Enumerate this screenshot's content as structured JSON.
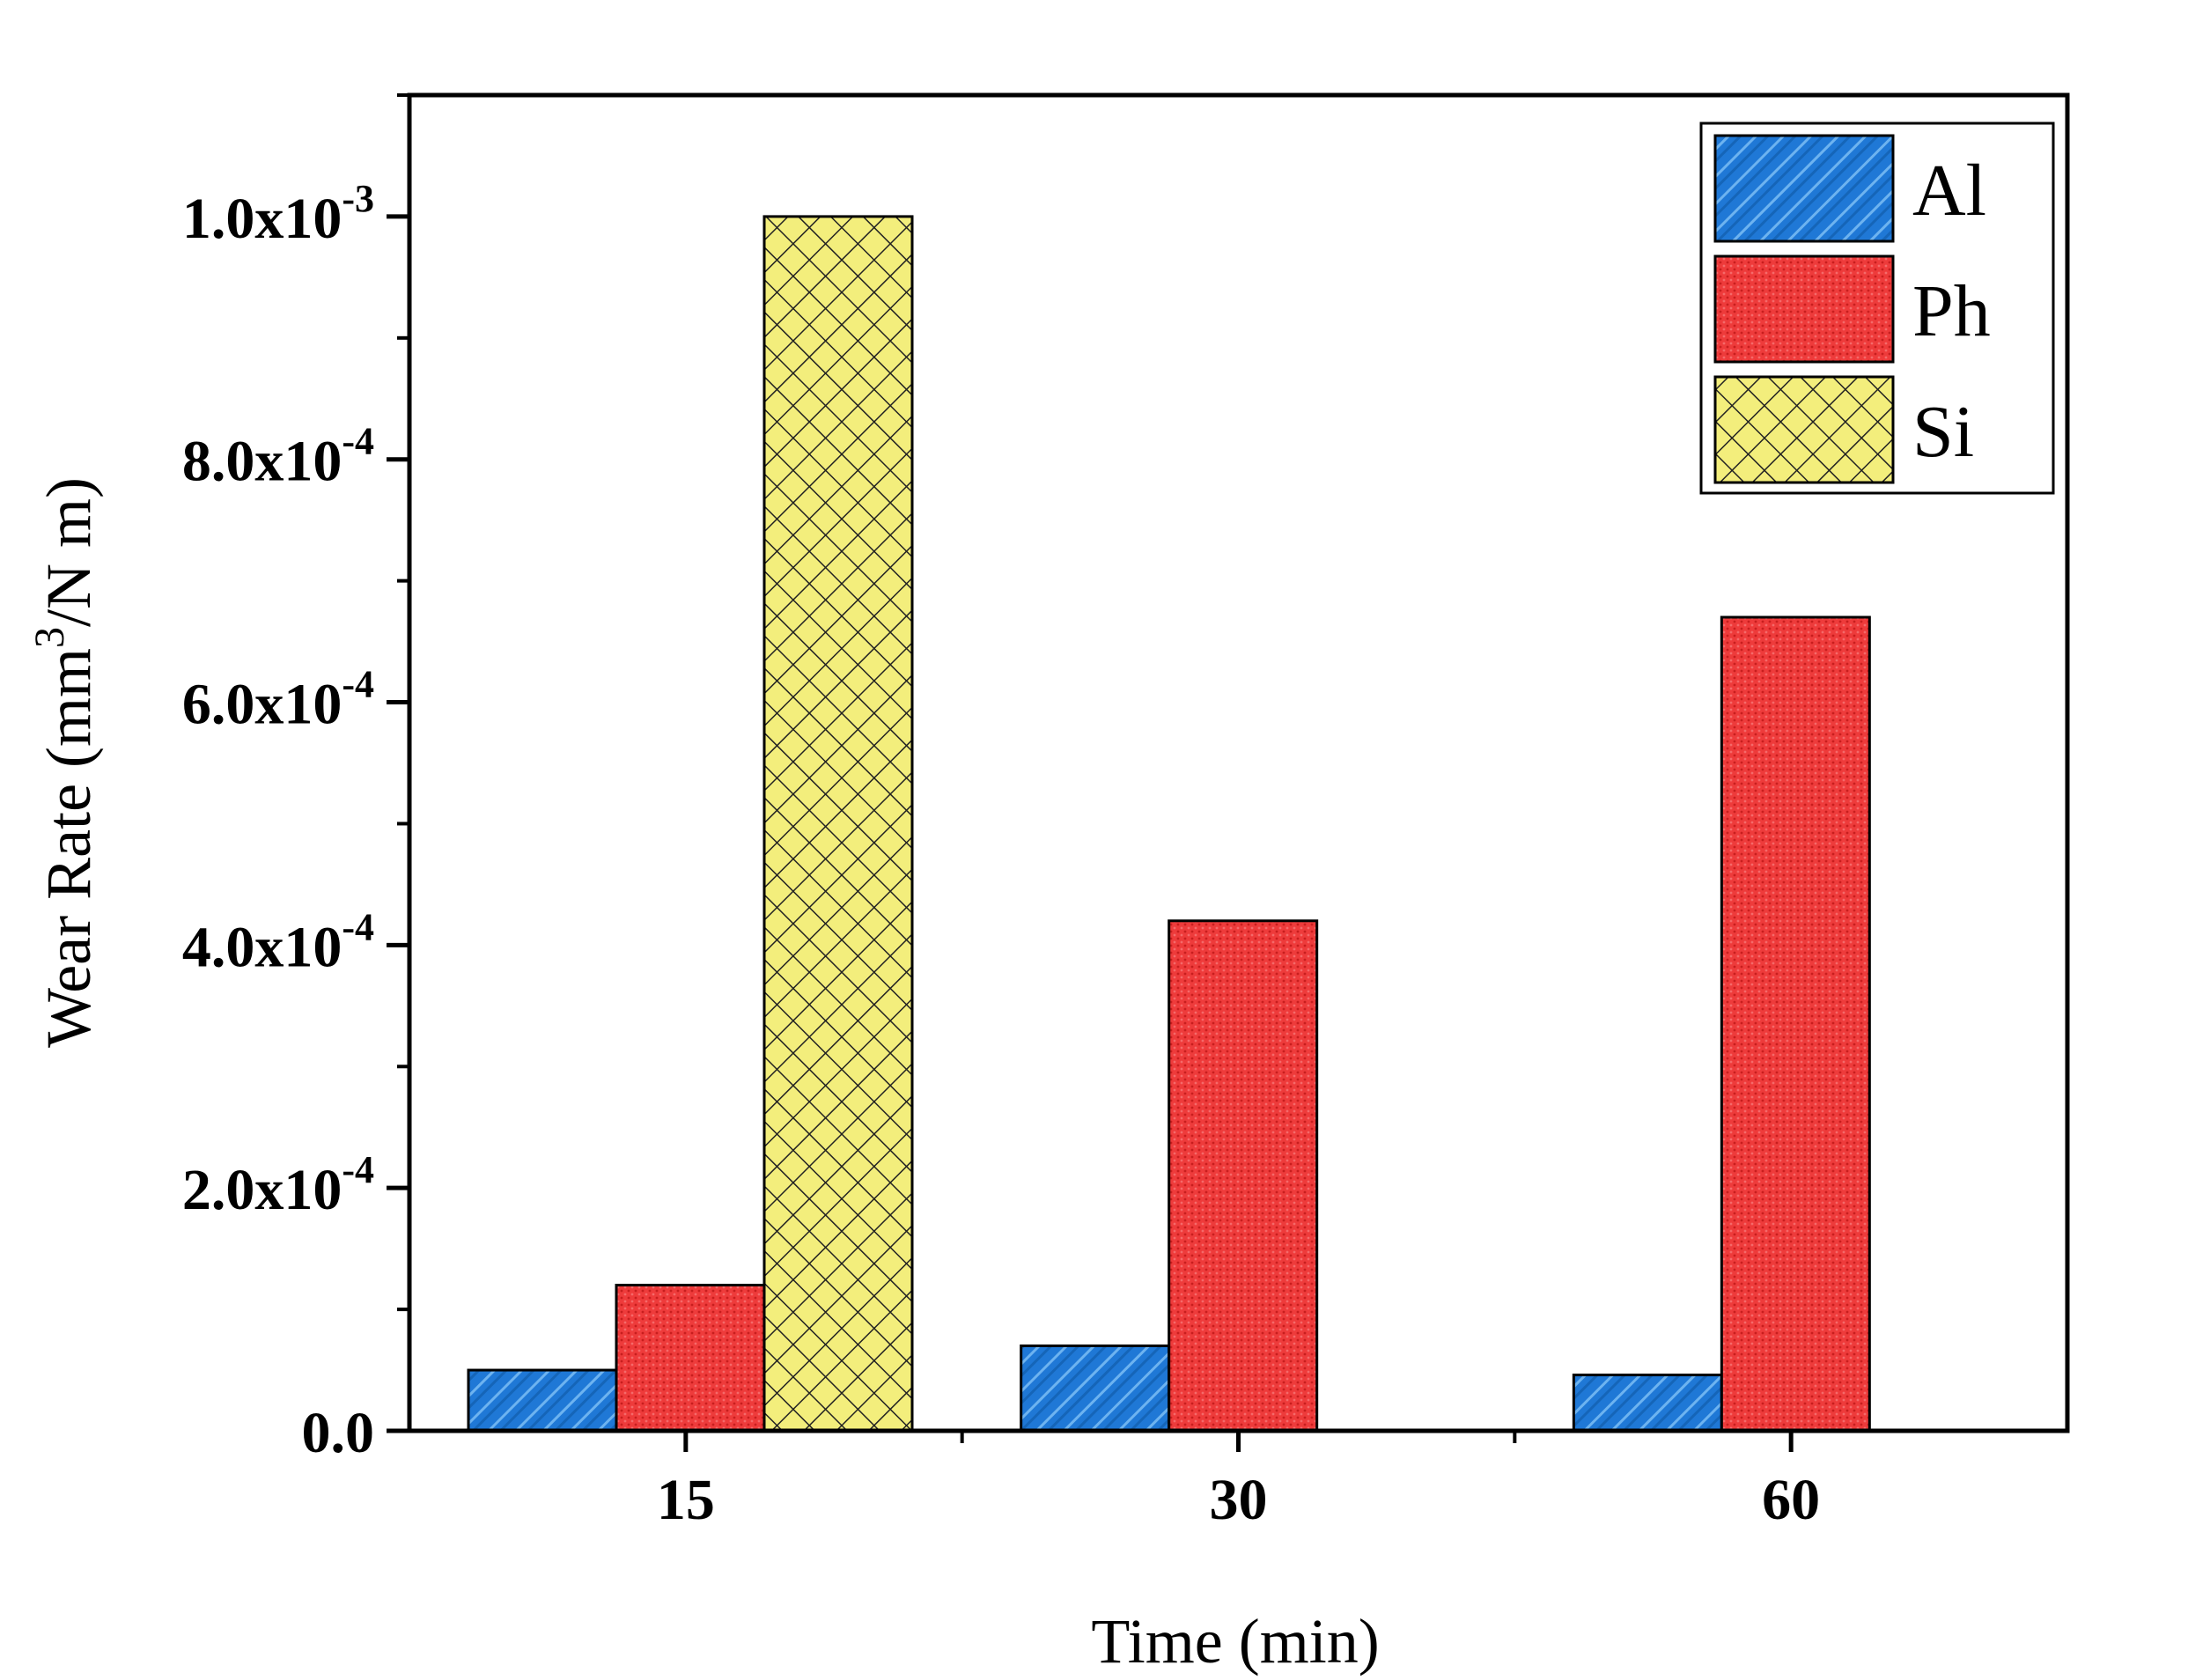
{
  "chart_data": {
    "type": "bar",
    "categories": [
      "15",
      "30",
      "60"
    ],
    "series": [
      {
        "name": "Al",
        "values": [
          5e-05,
          7e-05,
          4.6e-05
        ],
        "color": "#1f78d6",
        "pattern": "diagonal-hatch"
      },
      {
        "name": "Ph",
        "values": [
          0.00012,
          0.00042,
          0.00067
        ],
        "color": "#ee3b3b",
        "pattern": "fine-dots"
      },
      {
        "name": "Si",
        "values": [
          0.001,
          null,
          null
        ],
        "color": "#f3ee7c",
        "pattern": "crosshatch"
      }
    ],
    "xlabel": "Time (min)",
    "ylabel": {
      "prefix": "Wear Rate (mm",
      "superscript": "3",
      "suffix": "/N m)"
    },
    "ylim": [
      0,
      0.0011
    ],
    "yticks": [
      {
        "value": 0,
        "mantissa": "0.0",
        "exponent": ""
      },
      {
        "value": 0.0002,
        "mantissa": "2.0x10",
        "exponent": "-4"
      },
      {
        "value": 0.0004,
        "mantissa": "4.0x10",
        "exponent": "-4"
      },
      {
        "value": 0.0006,
        "mantissa": "6.0x10",
        "exponent": "-4"
      },
      {
        "value": 0.0008,
        "mantissa": "8.0x10",
        "exponent": "-4"
      },
      {
        "value": 0.001,
        "mantissa": "1.0x10",
        "exponent": "-3"
      }
    ],
    "legend_position": "top-right",
    "grid": false
  }
}
